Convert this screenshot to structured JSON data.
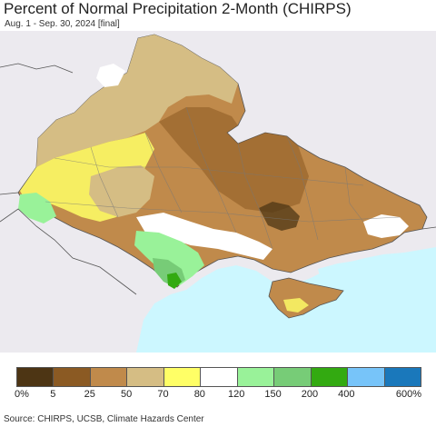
{
  "header": {
    "title": "Percent of Normal Precipitation 2-Month (CHIRPS)",
    "subtitle": "Aug. 1 - Sep. 30, 2024 [final]"
  },
  "legend": {
    "colors": [
      "#4d3514",
      "#8b5a23",
      "#c08a4b",
      "#d5bd84",
      "#ffff66",
      "#ffffff",
      "#99f299",
      "#77cc77",
      "#33aa11",
      "#77c4f9",
      "#1a78bb"
    ],
    "labels": [
      "0%",
      "5",
      "25",
      "50",
      "70",
      "80",
      "120",
      "150",
      "200",
      "400",
      "600%"
    ]
  },
  "footer": {
    "source": "Source: CHIRPS, UCSB, Climate Hazards Center"
  },
  "map_colors": {
    "background_land": "#eceaef",
    "sea": "#ccf7ff",
    "border": "#555555"
  }
}
